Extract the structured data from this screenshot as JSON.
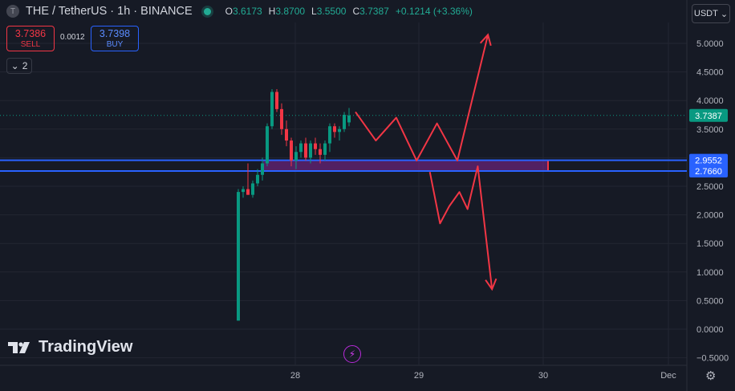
{
  "header": {
    "symbol_icon_text": "T",
    "title": "THE / TetherUS · 1h · BINANCE",
    "ohlc": [
      {
        "key": "O",
        "value": "3.6173"
      },
      {
        "key": "H",
        "value": "3.8700"
      },
      {
        "key": "L",
        "value": "3.5500"
      },
      {
        "key": "C",
        "value": "3.7387"
      }
    ],
    "change": "+0.1214 (+3.36%)"
  },
  "trade": {
    "sell_price": "3.7386",
    "sell_label": "SELL",
    "spread": "0.0012",
    "buy_price": "3.7398",
    "buy_label": "BUY"
  },
  "indicators_count": "2",
  "currency": "USDT",
  "brand": "TradingView",
  "chart_data": {
    "type": "candlestick",
    "y_axis": {
      "ticks": [
        "5.0000",
        "4.5000",
        "4.0000",
        "3.5000",
        "3.0000",
        "2.5000",
        "2.0000",
        "1.5000",
        "1.0000",
        "0.5000",
        "0.0000",
        "−0.5000"
      ],
      "range": [
        -0.6,
        5.3
      ]
    },
    "x_axis": {
      "ticks": [
        "28",
        "29",
        "30",
        "Dec"
      ]
    },
    "grid": true,
    "price_labels": [
      {
        "label": "3.7387",
        "value": 3.7387,
        "color": "#089981",
        "text_color": "#ffffff"
      },
      {
        "label": "2.9552",
        "value": 2.9552,
        "color": "#2962ff",
        "text_color": "#ffffff"
      },
      {
        "label": "2.7660",
        "value": 2.766,
        "color": "#2962ff",
        "text_color": "#ffffff"
      }
    ],
    "horizontal_lines": [
      {
        "value": 2.9552,
        "color": "#2962ff"
      },
      {
        "value": 2.766,
        "color": "#2962ff"
      }
    ],
    "zone": {
      "from": 2.766,
      "to": 2.9552,
      "color": "#9c27b0",
      "border": "#f23645"
    },
    "current_price_line": {
      "value": 3.7387,
      "color": "#089981"
    },
    "candles": [
      {
        "o": 0.15,
        "h": 2.45,
        "l": 0.15,
        "c": 2.4
      },
      {
        "o": 2.4,
        "h": 2.5,
        "l": 2.3,
        "c": 2.45
      },
      {
        "o": 2.45,
        "h": 2.9,
        "l": 2.35,
        "c": 2.35
      },
      {
        "o": 2.35,
        "h": 2.6,
        "l": 2.3,
        "c": 2.55
      },
      {
        "o": 2.55,
        "h": 2.8,
        "l": 2.5,
        "c": 2.7
      },
      {
        "o": 2.7,
        "h": 3.0,
        "l": 2.6,
        "c": 2.9
      },
      {
        "o": 2.9,
        "h": 3.6,
        "l": 2.85,
        "c": 3.55
      },
      {
        "o": 3.55,
        "h": 4.2,
        "l": 3.5,
        "c": 4.15
      },
      {
        "o": 4.15,
        "h": 4.2,
        "l": 3.8,
        "c": 3.85
      },
      {
        "o": 3.85,
        "h": 3.95,
        "l": 3.4,
        "c": 3.5
      },
      {
        "o": 3.5,
        "h": 3.65,
        "l": 3.2,
        "c": 3.3
      },
      {
        "o": 3.3,
        "h": 3.35,
        "l": 2.85,
        "c": 2.95
      },
      {
        "o": 2.95,
        "h": 3.2,
        "l": 2.8,
        "c": 3.1
      },
      {
        "o": 3.1,
        "h": 3.3,
        "l": 3.0,
        "c": 3.25
      },
      {
        "o": 3.25,
        "h": 3.35,
        "l": 2.95,
        "c": 3.0
      },
      {
        "o": 3.0,
        "h": 3.3,
        "l": 2.9,
        "c": 3.25
      },
      {
        "o": 3.25,
        "h": 3.35,
        "l": 3.05,
        "c": 3.15
      },
      {
        "o": 3.15,
        "h": 3.25,
        "l": 2.9,
        "c": 3.05
      },
      {
        "o": 3.05,
        "h": 3.3,
        "l": 2.95,
        "c": 3.25
      },
      {
        "o": 3.25,
        "h": 3.6,
        "l": 3.1,
        "c": 3.55
      },
      {
        "o": 3.55,
        "h": 3.6,
        "l": 3.35,
        "c": 3.45
      },
      {
        "o": 3.45,
        "h": 3.55,
        "l": 3.3,
        "c": 3.5
      },
      {
        "o": 3.5,
        "h": 3.8,
        "l": 3.45,
        "c": 3.75
      },
      {
        "o": 3.6173,
        "h": 3.87,
        "l": 3.55,
        "c": 3.7387
      }
    ],
    "projection_paths": [
      {
        "color": "#f23645",
        "points": [
          [
            0,
            3.8
          ],
          [
            2,
            3.3
          ],
          [
            4,
            3.7
          ],
          [
            6,
            2.95
          ],
          [
            8,
            3.6
          ],
          [
            10,
            2.95
          ],
          [
            13,
            5.15
          ]
        ],
        "arrow": true
      },
      {
        "color": "#f23645",
        "points": [
          [
            7.3,
            2.75
          ],
          [
            8.3,
            1.85
          ],
          [
            9.2,
            2.15
          ],
          [
            10.2,
            2.4
          ],
          [
            11,
            2.1
          ],
          [
            12,
            2.85
          ],
          [
            13.4,
            0.7
          ]
        ],
        "arrow": true
      }
    ]
  }
}
